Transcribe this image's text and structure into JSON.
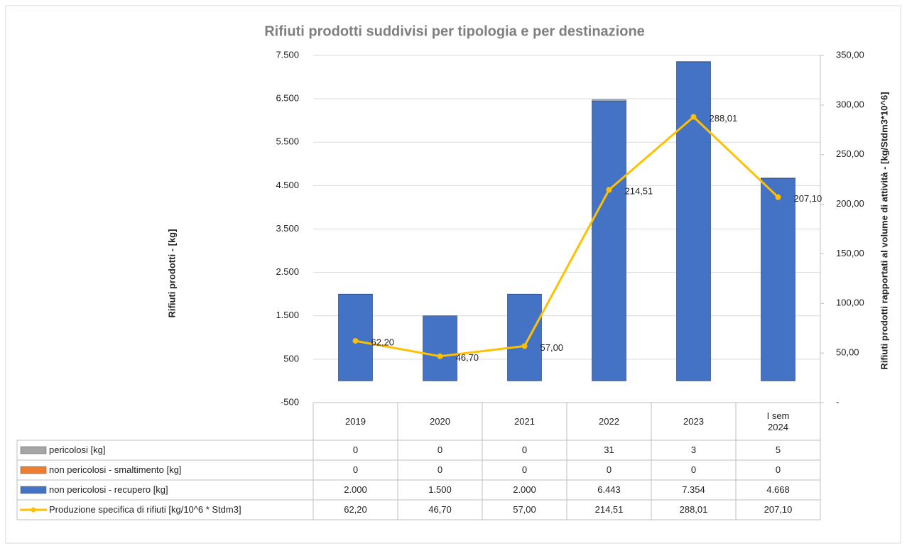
{
  "chart_data": {
    "type": "bar",
    "title": "Rifiuti prodotti suddivisi per tipologia e per destinazione",
    "y_label": "Rifiuti prodotti  -  [kg]",
    "y2_label": "Rifiuti prodotti rapportati al volume di attività  -  [kg/Stdm3*10^6]",
    "categories": [
      "2019",
      "2020",
      "2021",
      "2022",
      "2023",
      "I sem 2024"
    ],
    "series": [
      {
        "name": "pericolosi [kg]",
        "color": "#a5a5a5",
        "values": [
          0,
          0,
          0,
          31,
          3,
          5
        ]
      },
      {
        "name": "non pericolosi - smaltimento [kg]",
        "color": "#ed7d31",
        "values": [
          0,
          0,
          0,
          0,
          0,
          0
        ]
      },
      {
        "name": "non pericolosi - recupero [kg]",
        "color": "#4472c4",
        "values": [
          2000,
          1500,
          2000,
          6443,
          7354,
          4668
        ],
        "value_labels": [
          "2.000",
          "1.500",
          "2.000",
          "6.443",
          "7.354",
          "4.668"
        ]
      },
      {
        "name": "Produzione specifica di rifiuti [kg/10^6 * Stdm3]",
        "color": "#ffc000",
        "type": "line",
        "axis": "y2",
        "values": [
          62.2,
          46.7,
          57,
          214.51,
          288.01,
          207.1
        ],
        "value_labels": [
          "62,20",
          "46,70",
          "57,00",
          "214,51",
          "288,01",
          "207,10"
        ]
      }
    ],
    "ylim": [
      -500,
      7500
    ],
    "yticks": [
      {
        "value": -500,
        "label": "-500"
      },
      500,
      {
        "value": 1500,
        "label": "1.500"
      },
      {
        "value": 2500,
        "label": "2.500"
      },
      {
        "value": 3500,
        "label": "3.500"
      },
      {
        "value": 4500,
        "label": "4.500"
      },
      {
        "value": 5500,
        "label": "5.500"
      },
      {
        "value": 6500,
        "label": "6.500"
      },
      {
        "value": 7500,
        "label": "7.500"
      }
    ],
    "y2lim": [
      0,
      350
    ],
    "y2ticks": [
      {
        "value": 0,
        "label": "-"
      },
      {
        "value": 50,
        "label": "50,00"
      },
      {
        "value": 100,
        "label": "100,00"
      },
      {
        "value": 150,
        "label": "150,00"
      },
      {
        "value": 200,
        "label": "200,00"
      },
      {
        "value": 250,
        "label": "250,00"
      },
      {
        "value": 300,
        "label": "300,00"
      },
      {
        "value": 350,
        "label": "350,00"
      }
    ],
    "grid": true
  }
}
